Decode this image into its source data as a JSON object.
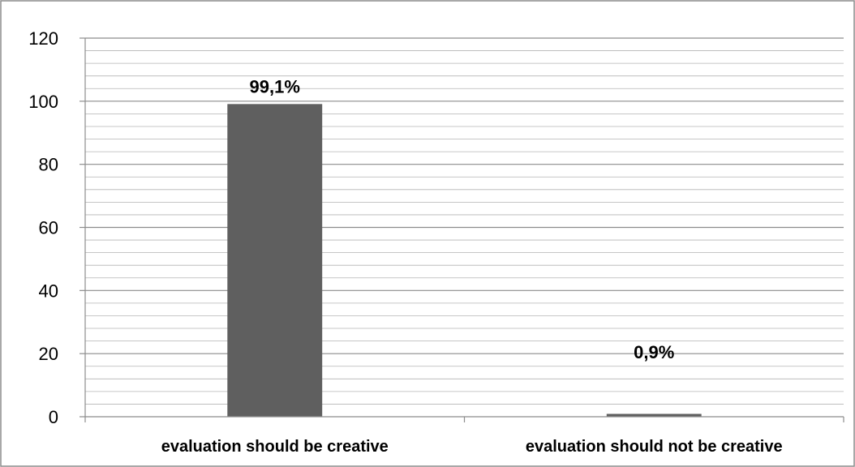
{
  "chart_data": {
    "type": "bar",
    "title": "",
    "xlabel": "",
    "ylabel": "",
    "categories": [
      "evaluation should be creative",
      "evaluation should not be creative"
    ],
    "values": [
      99.1,
      0.9
    ],
    "data_labels": [
      "99,1%",
      "0,9%"
    ],
    "ylim": [
      0,
      120
    ],
    "y_ticks": [
      0,
      20,
      40,
      60,
      80,
      100,
      120
    ],
    "y_tick_labels": [
      "0",
      "20",
      "40",
      "60",
      "80",
      "100",
      "120"
    ],
    "minor_gridline_step": 4,
    "grid": true,
    "legend": "none",
    "colors": {
      "bar": "#5f5f5f",
      "gridline": "#8c8c8c",
      "axis": "#8c8c8c",
      "border": "#8c8c8c"
    }
  }
}
